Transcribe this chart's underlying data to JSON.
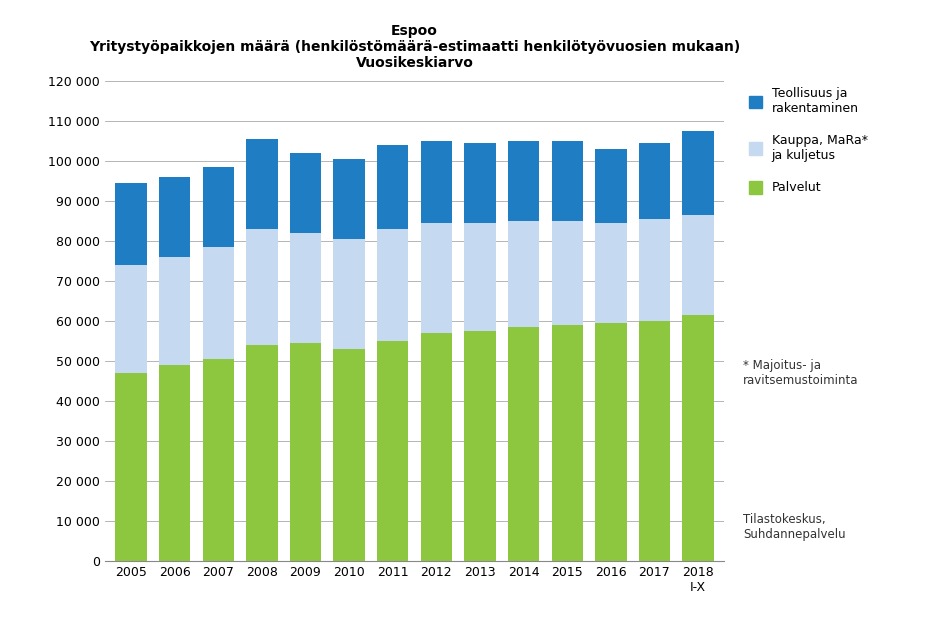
{
  "title_main": "Espoo",
  "title_sub1": "Yritystyöpaikkojen määrä (henkilöstömäärä-estimaatti henkilötyövuosien mukaan)",
  "title_sub2": "Vuosikeskiarvo",
  "years": [
    "2005",
    "2006",
    "2007",
    "2008",
    "2009",
    "2010",
    "2011",
    "2012",
    "2013",
    "2014",
    "2015",
    "2016",
    "2017",
    "2018\nI-X"
  ],
  "palvelut": [
    47000,
    49000,
    50500,
    54000,
    54500,
    53000,
    55000,
    57000,
    57500,
    58500,
    59000,
    59500,
    60000,
    61500
  ],
  "kauppa": [
    27000,
    27000,
    28000,
    29000,
    27500,
    27500,
    28000,
    27500,
    27000,
    26500,
    26000,
    25000,
    25500,
    25000
  ],
  "teollisuus": [
    20500,
    20000,
    20000,
    22500,
    20000,
    20000,
    21000,
    20500,
    20000,
    20000,
    20000,
    18500,
    19000,
    21000
  ],
  "color_palvelut": "#8DC63F",
  "color_kauppa": "#C5D9F1",
  "color_teollisuus": "#1F7DC4",
  "legend_teollisuus": "Teollisuus ja\nrakentaminen",
  "legend_kauppa": "Kauppa, MaRa*\nja kuljetus",
  "legend_palvelut": "Palvelut",
  "footnote1": "* Majoitus- ja\nravitsemustoiminta",
  "footnote2": "Tilastokeskus,\nSuhdannepalvelu",
  "ylim": [
    0,
    120000
  ],
  "yticks": [
    0,
    10000,
    20000,
    30000,
    40000,
    50000,
    60000,
    70000,
    80000,
    90000,
    100000,
    110000,
    120000
  ],
  "ytick_labels": [
    "0",
    "10 000",
    "20 000",
    "30 000",
    "40 000",
    "50 000",
    "60 000",
    "70 000",
    "80 000",
    "90 000",
    "100 000",
    "110 000",
    "120 000"
  ],
  "background_color": "#FFFFFF",
  "grid_color": "#AAAAAA"
}
